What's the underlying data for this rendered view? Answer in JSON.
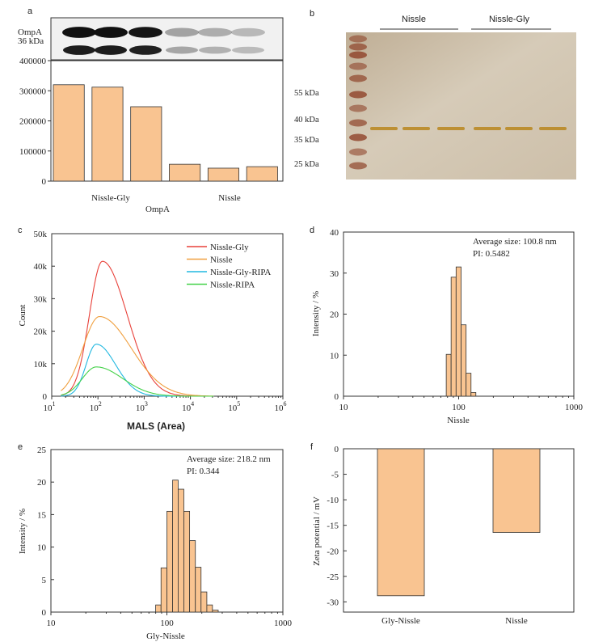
{
  "colors": {
    "bar_fill": "#f9c491",
    "bar_stroke": "#333333",
    "axis": "#333333",
    "nissle_gly_line": "#e8413a",
    "nissle_line": "#f0a040",
    "nissle_gly_ripa_line": "#21b8e0",
    "nissle_ripa_line": "#45d24a",
    "gel_background": "#c9b9a2",
    "gel_band": "#b8861d",
    "ladder_band": "#8b3a20",
    "western_band": "#111111"
  },
  "panel_letters": [
    "a",
    "b",
    "c",
    "d",
    "e",
    "f"
  ],
  "blot": {
    "labels": [
      "OmpA",
      "36 kDa"
    ],
    "band_intensity": [
      0.95,
      0.92,
      0.88,
      0.25,
      0.2,
      0.15
    ]
  },
  "gel": {
    "group_labels": [
      "Nissle",
      "Nissle-Gly"
    ],
    "marker_labels": [
      "55 kDa",
      "40 kDa",
      "35 kDa",
      "25 kDa"
    ],
    "sample_lanes": 6
  },
  "chart_data": [
    {
      "id": "a",
      "type": "bar",
      "values": [
        320000,
        312000,
        247000,
        56000,
        43000,
        48000
      ],
      "ylim": [
        0,
        400000
      ],
      "yticks": [
        "0",
        "100000",
        "200000",
        "300000",
        "400000"
      ],
      "group_labels": [
        "Nissle-Gly",
        "Nissle"
      ],
      "xlabel": "OmpA"
    },
    {
      "id": "c",
      "type": "line",
      "xscale": "log",
      "xlim": [
        10,
        1000000
      ],
      "ylim": [
        0,
        50000
      ],
      "xticks": [
        {
          "base": "10",
          "exp": "1"
        },
        {
          "base": "10",
          "exp": "2"
        },
        {
          "base": "10",
          "exp": "3"
        },
        {
          "base": "10",
          "exp": "4"
        },
        {
          "base": "10",
          "exp": "5"
        },
        {
          "base": "10",
          "exp": "6"
        }
      ],
      "yticks": [
        "0",
        "10k",
        "20k",
        "30k",
        "40k",
        "50k"
      ],
      "xlabel": "MALS (Area)",
      "ylabel": "Count",
      "legend_position": "top-right",
      "series": [
        {
          "name": "Nissle-Gly",
          "peak": 41500,
          "center": 125,
          "sigma": 0.28
        },
        {
          "name": "Nissle",
          "peak": 24500,
          "center": 108,
          "sigma": 0.36
        },
        {
          "name": "Nissle-Gly-RIPA",
          "peak": 16000,
          "center": 92,
          "sigma": 0.22
        },
        {
          "name": "Nissle-RIPA",
          "peak": 9000,
          "center": 92,
          "sigma": 0.3
        }
      ]
    },
    {
      "id": "d",
      "type": "bar",
      "xscale": "log",
      "xlim": [
        10,
        1000
      ],
      "ylim": [
        0,
        40
      ],
      "xticks": [
        "10",
        "100",
        "1000"
      ],
      "yticks": [
        "0",
        "10",
        "20",
        "30",
        "40"
      ],
      "xlabel": "Nissle",
      "ylabel": "Intensity / %",
      "annotation": [
        "Average size: 100.8 nm",
        "PI: 0.5482"
      ],
      "bins": [
        {
          "x0": 78,
          "x1": 86,
          "value": 10.2
        },
        {
          "x0": 86,
          "x1": 95,
          "value": 29
        },
        {
          "x0": 95,
          "x1": 105,
          "value": 31.5
        },
        {
          "x0": 105,
          "x1": 116,
          "value": 17.4
        },
        {
          "x0": 116,
          "x1": 128,
          "value": 5.6
        },
        {
          "x0": 128,
          "x1": 141,
          "value": 0.9
        }
      ]
    },
    {
      "id": "e",
      "type": "bar",
      "xscale": "log",
      "xlim": [
        10,
        1000
      ],
      "ylim": [
        0,
        25
      ],
      "xticks": [
        "10",
        "100",
        "1000"
      ],
      "yticks": [
        "0",
        "5",
        "10",
        "15",
        "20",
        "25"
      ],
      "xlabel": "Gly-Nissle",
      "ylabel": "Intensity / %",
      "annotation": [
        "Average size: 218.2 nm",
        "PI: 0.344"
      ],
      "bins": [
        {
          "x0": 80,
          "x1": 89,
          "value": 1.1
        },
        {
          "x0": 89,
          "x1": 100,
          "value": 6.8
        },
        {
          "x0": 100,
          "x1": 112,
          "value": 15.5
        },
        {
          "x0": 112,
          "x1": 125,
          "value": 20.3
        },
        {
          "x0": 125,
          "x1": 140,
          "value": 18.9
        },
        {
          "x0": 140,
          "x1": 157,
          "value": 15.5
        },
        {
          "x0": 157,
          "x1": 176,
          "value": 11
        },
        {
          "x0": 176,
          "x1": 197,
          "value": 6.9
        },
        {
          "x0": 197,
          "x1": 221,
          "value": 3.1
        },
        {
          "x0": 221,
          "x1": 247,
          "value": 1.1
        },
        {
          "x0": 247,
          "x1": 277,
          "value": 0.3
        }
      ]
    },
    {
      "id": "f",
      "type": "bar",
      "categories": [
        "Gly-Nissle",
        "Nissle"
      ],
      "values": [
        -28.8,
        -16.4
      ],
      "ylim": [
        -32,
        0
      ],
      "yticks": [
        "0",
        "-5",
        "-10",
        "-15",
        "-20",
        "-25",
        "-30"
      ],
      "ylabel": "Zeta potential / mV"
    }
  ]
}
